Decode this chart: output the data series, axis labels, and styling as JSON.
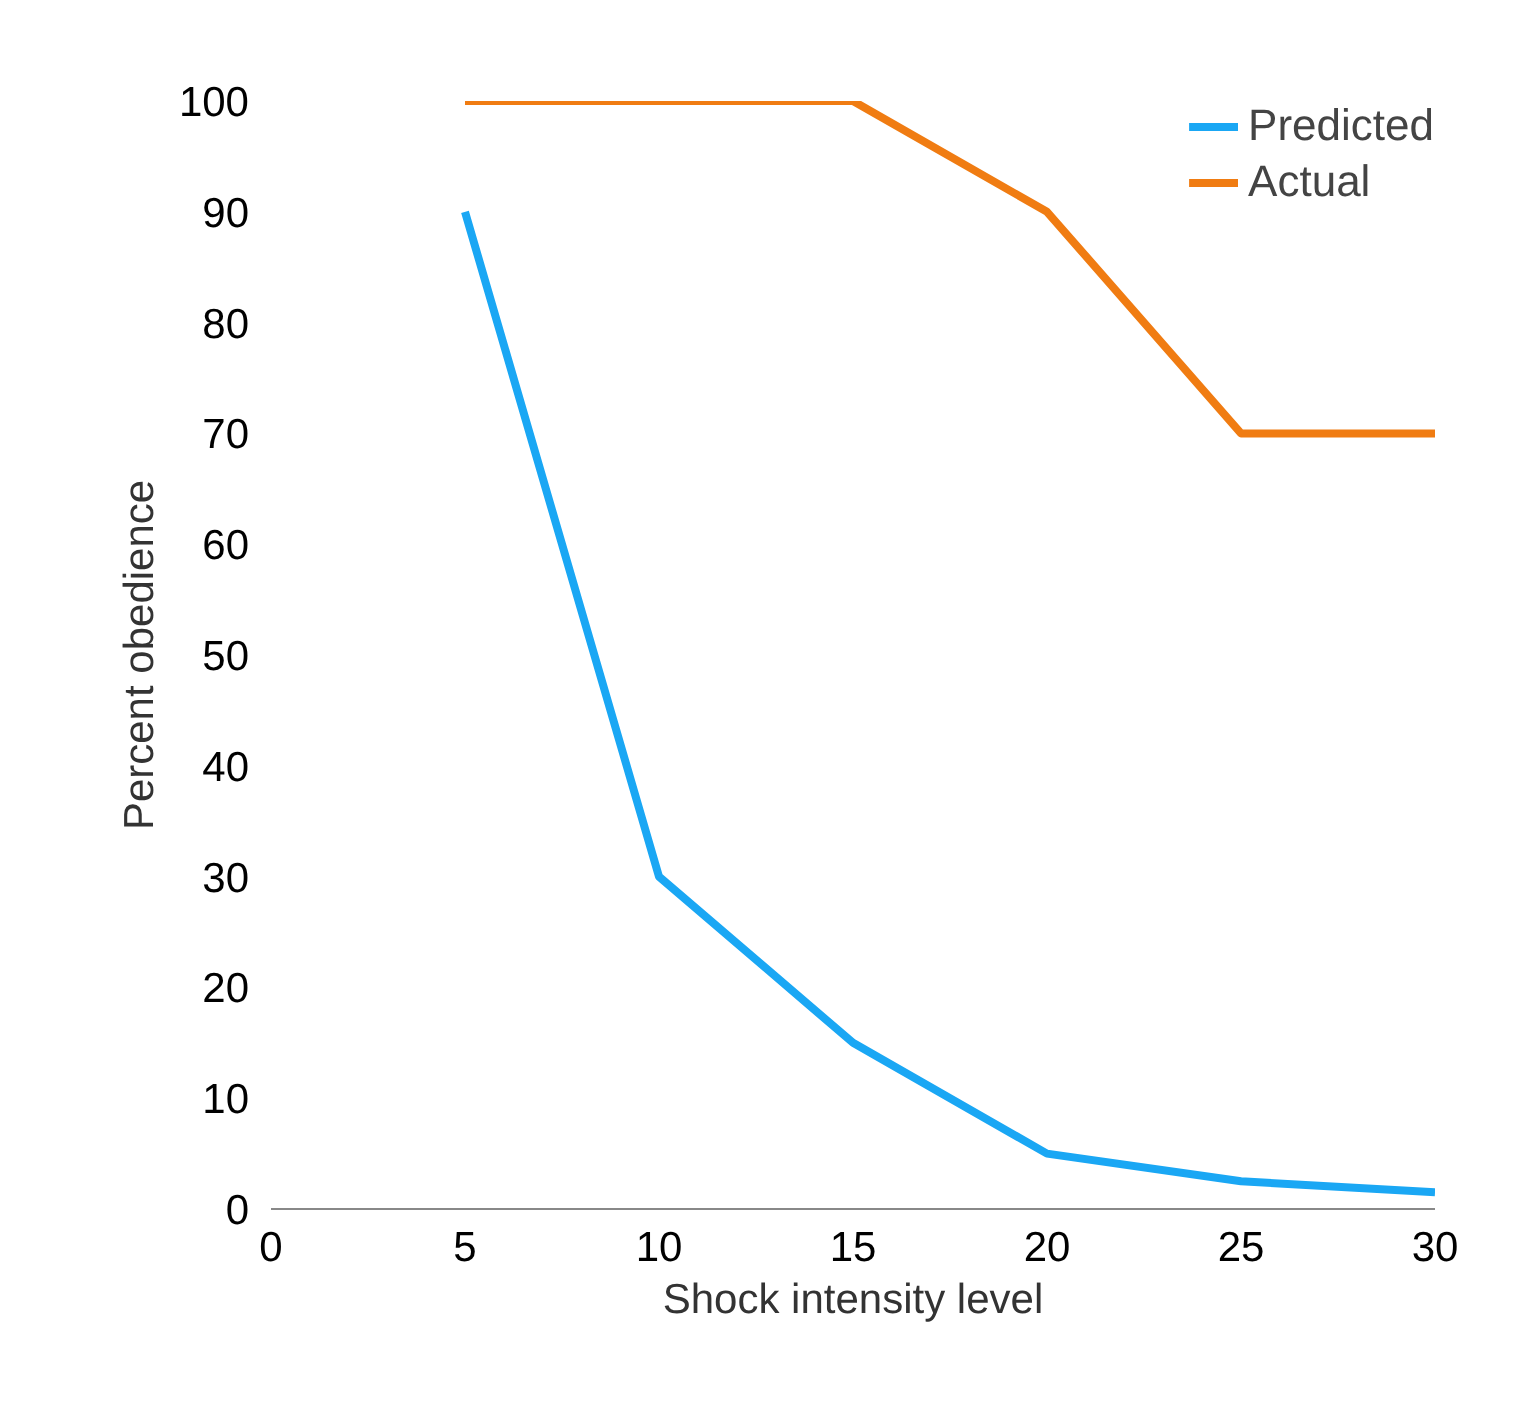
{
  "chart_data": {
    "type": "line",
    "xlabel": "Shock intensity level",
    "ylabel": "Percent obedience",
    "x": [
      5,
      10,
      15,
      20,
      25,
      30
    ],
    "series": [
      {
        "name": "Predicted",
        "color": "#1aa7f4",
        "values": [
          90,
          30,
          15,
          5,
          2.5,
          1.5
        ]
      },
      {
        "name": "Actual",
        "color": "#f07c12",
        "values": [
          100,
          100,
          100,
          90,
          70,
          70
        ]
      }
    ],
    "xlim": [
      0,
      30
    ],
    "xticks": [
      0,
      5,
      10,
      15,
      20,
      25,
      30
    ],
    "ylim": [
      0,
      100
    ],
    "yticks": [
      0,
      10,
      20,
      30,
      40,
      50,
      60,
      70,
      80,
      90,
      100
    ],
    "grid": false,
    "legend": "top right",
    "marker": "none",
    "line_style": "solid"
  }
}
